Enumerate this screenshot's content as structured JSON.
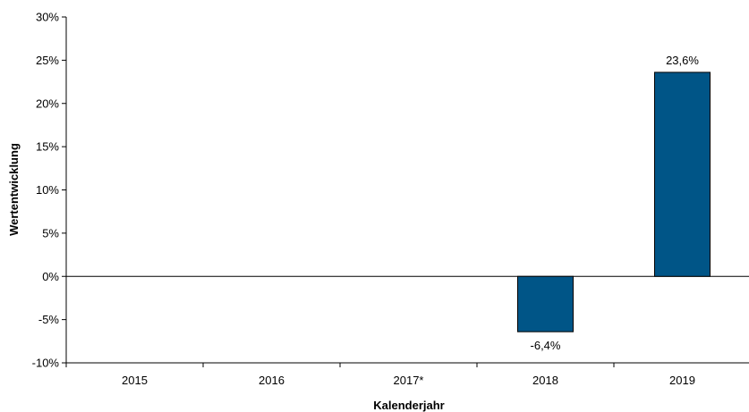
{
  "chart_data": {
    "type": "bar",
    "xlabel": "Kalenderjahr",
    "ylabel": "Wertentwicklung",
    "categories": [
      "2015",
      "2016",
      "2017*",
      "2018",
      "2019"
    ],
    "values": [
      null,
      null,
      null,
      -6.4,
      23.6
    ],
    "data_labels": [
      "",
      "",
      "",
      "-6,4%",
      "23,6%"
    ],
    "ylim": [
      -10,
      30
    ],
    "yticks": [
      30,
      25,
      20,
      15,
      10,
      5,
      0,
      -5,
      -10
    ],
    "ytick_labels": [
      "30%",
      "25%",
      "20%",
      "15%",
      "10%",
      "5%",
      "0%",
      "-5%",
      "-10%"
    ],
    "grid": false,
    "legend": "none",
    "bar_color": "#005587"
  }
}
